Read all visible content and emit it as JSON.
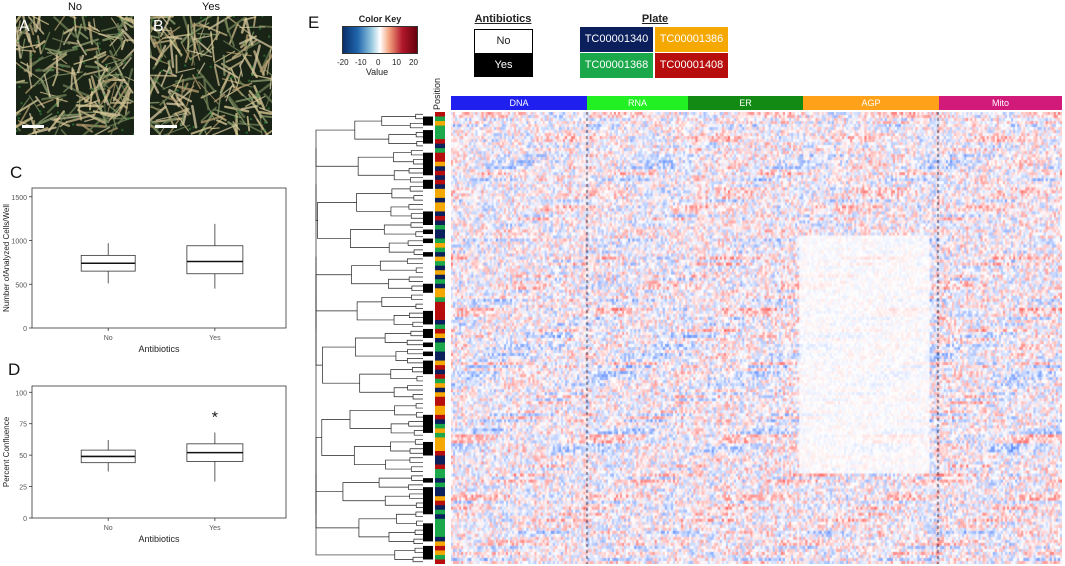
{
  "panels": {
    "a": {
      "letter": "A",
      "title": "No"
    },
    "b": {
      "letter": "B",
      "title": "Yes"
    },
    "c": {
      "letter": "C"
    },
    "d": {
      "letter": "D"
    },
    "e": {
      "letter": "E"
    }
  },
  "heatmap": {
    "color_key": {
      "title": "Color Key",
      "ticks": [
        "-20",
        "-10",
        "0",
        "10",
        "20"
      ],
      "value_label": "Value"
    },
    "antibiotics_legend": {
      "title": "Antibiotics",
      "no_label": "No",
      "yes_label": "Yes"
    },
    "plate_legend": {
      "title": "Plate",
      "plates": [
        {
          "label": "TC00001340",
          "color": "#0b1f5c"
        },
        {
          "label": "TC00001386",
          "color": "#f5a800"
        },
        {
          "label": "TC00001368",
          "color": "#1aa84a"
        },
        {
          "label": "TC00001408",
          "color": "#b80d0d"
        }
      ]
    },
    "position_label": "Position",
    "channels": [
      {
        "label": "DNA",
        "color": "#1f1ff0"
      },
      {
        "label": "RNA",
        "color": "#22f022"
      },
      {
        "label": "ER",
        "color": "#138a13"
      },
      {
        "label": "AGP",
        "color": "#ffa21a"
      },
      {
        "label": "Mito",
        "color": "#d11a7a"
      }
    ]
  },
  "chart_data": [
    {
      "type": "box",
      "panel": "C",
      "categories": [
        "No",
        "Yes"
      ],
      "xlabel": "Antibiotics",
      "ylabel": "Number ofAnalyzed Cells/Well",
      "ylim": [
        0,
        1600
      ],
      "yticks": [
        0,
        500,
        1000,
        1500
      ],
      "boxes": [
        {
          "category": "No",
          "min": 510,
          "q1": 650,
          "median": 740,
          "q3": 830,
          "max": 970
        },
        {
          "category": "Yes",
          "min": 450,
          "q1": 620,
          "median": 760,
          "q3": 940,
          "max": 1190
        }
      ]
    },
    {
      "type": "box",
      "panel": "D",
      "categories": [
        "No",
        "Yes"
      ],
      "xlabel": "Antibiotics",
      "ylabel": "Percent Confluence",
      "ylim": [
        0,
        105
      ],
      "yticks": [
        0,
        25,
        50,
        75,
        100
      ],
      "annotation": "*",
      "boxes": [
        {
          "category": "No",
          "min": 37,
          "q1": 44,
          "median": 49,
          "q3": 54,
          "max": 62
        },
        {
          "category": "Yes",
          "min": 29,
          "q1": 45,
          "median": 52,
          "q3": 59,
          "max": 68
        }
      ]
    }
  ]
}
